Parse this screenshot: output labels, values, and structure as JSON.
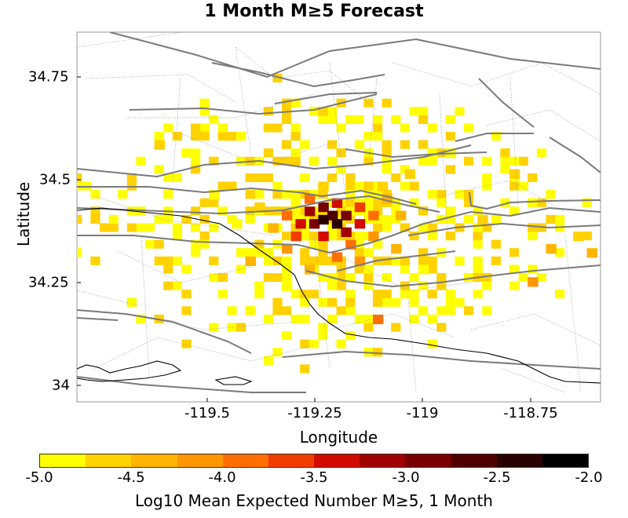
{
  "title": "1 Month M≥5 Forecast",
  "xlabel": "Longitude",
  "ylabel": "Latitude",
  "x_ticks": [
    "-119.5",
    "-119.25",
    "-119",
    "-118.75"
  ],
  "y_ticks": [
    "34.75",
    "34.5",
    "34.25",
    "34"
  ],
  "colorbar": {
    "label": "Log10 Mean Expected Number M≥5, 1 Month",
    "ticks": [
      "-5.0",
      "-4.5",
      "-4.0",
      "-3.5",
      "-3.0",
      "-2.5",
      "-2.0"
    ],
    "colors": [
      "#ffff00",
      "#ffd200",
      "#ffb400",
      "#ff9600",
      "#ff6e00",
      "#f03c00",
      "#d20a00",
      "#a00000",
      "#780000",
      "#500000",
      "#280000",
      "#000000"
    ]
  },
  "chart_data": {
    "type": "heatmap",
    "title": "1 Month M≥5 Forecast",
    "xlabel": "Longitude",
    "ylabel": "Latitude",
    "xlim": [
      -119.75,
      -118.6
    ],
    "ylim": [
      33.97,
      34.86
    ],
    "color_range": [
      -5.0,
      -2.0
    ],
    "hotspot": {
      "lon": -119.2,
      "lat": 34.41,
      "peak_value": -2.3
    },
    "cells": [
      [
        -119.22,
        34.42,
        -2.3
      ],
      [
        -119.19,
        34.41,
        -2.4
      ],
      [
        -119.2,
        34.43,
        -2.6
      ],
      [
        -119.17,
        34.43,
        -2.8
      ],
      [
        -119.24,
        34.41,
        -2.9
      ],
      [
        -119.22,
        34.45,
        -3.0
      ],
      [
        -119.17,
        34.39,
        -3.1
      ],
      [
        -119.25,
        34.44,
        -3.2
      ],
      [
        -119.14,
        34.41,
        -3.3
      ],
      [
        -119.27,
        34.41,
        -3.4
      ],
      [
        -119.19,
        34.46,
        -3.4
      ],
      [
        -119.22,
        34.38,
        -3.5
      ],
      [
        -119.14,
        34.45,
        -3.6
      ],
      [
        -119.28,
        34.38,
        -3.6
      ],
      [
        -119.16,
        34.36,
        -3.8
      ],
      [
        -119.3,
        34.43,
        -3.8
      ],
      [
        -119.11,
        34.43,
        -3.9
      ],
      [
        -119.25,
        34.47,
        -3.9
      ],
      [
        -119.19,
        34.33,
        -4.0
      ],
      [
        -119.11,
        34.38,
        -4.1
      ],
      [
        -119.3,
        34.35,
        -4.2
      ],
      [
        -119.14,
        34.32,
        -4.2
      ],
      [
        -119.08,
        34.47,
        -4.3
      ],
      [
        -119.33,
        34.4,
        -4.3
      ],
      [
        -119.25,
        34.3,
        -4.4
      ],
      [
        -119.05,
        34.43,
        -4.4
      ],
      [
        -119.1,
        34.18,
        -3.9
      ],
      [
        -119.38,
        34.32,
        -4.5
      ],
      [
        -119.06,
        34.35,
        -4.5
      ],
      [
        -119.22,
        34.5,
        -4.6
      ],
      [
        -119.09,
        34.5,
        -4.6
      ],
      [
        -119.36,
        34.45,
        -4.7
      ],
      [
        -118.76,
        34.27,
        -4.2
      ],
      [
        -118.72,
        34.35,
        -4.5
      ],
      [
        -118.66,
        34.38,
        -4.6
      ],
      [
        -118.63,
        34.34,
        -4.5
      ],
      [
        -118.8,
        34.53,
        -4.6
      ],
      [
        -119.03,
        34.53,
        -4.7
      ],
      [
        -119.0,
        34.3,
        -4.8
      ],
      [
        -119.41,
        34.41,
        -4.8
      ],
      [
        -119.3,
        34.26,
        -4.8
      ],
      [
        -119.2,
        34.28,
        -4.9
      ],
      [
        -119.58,
        34.6,
        -4.7
      ],
      [
        -118.87,
        34.42,
        -4.7
      ],
      [
        -119.46,
        34.48,
        -4.9
      ],
      [
        -118.94,
        34.58,
        -4.8
      ]
    ]
  }
}
